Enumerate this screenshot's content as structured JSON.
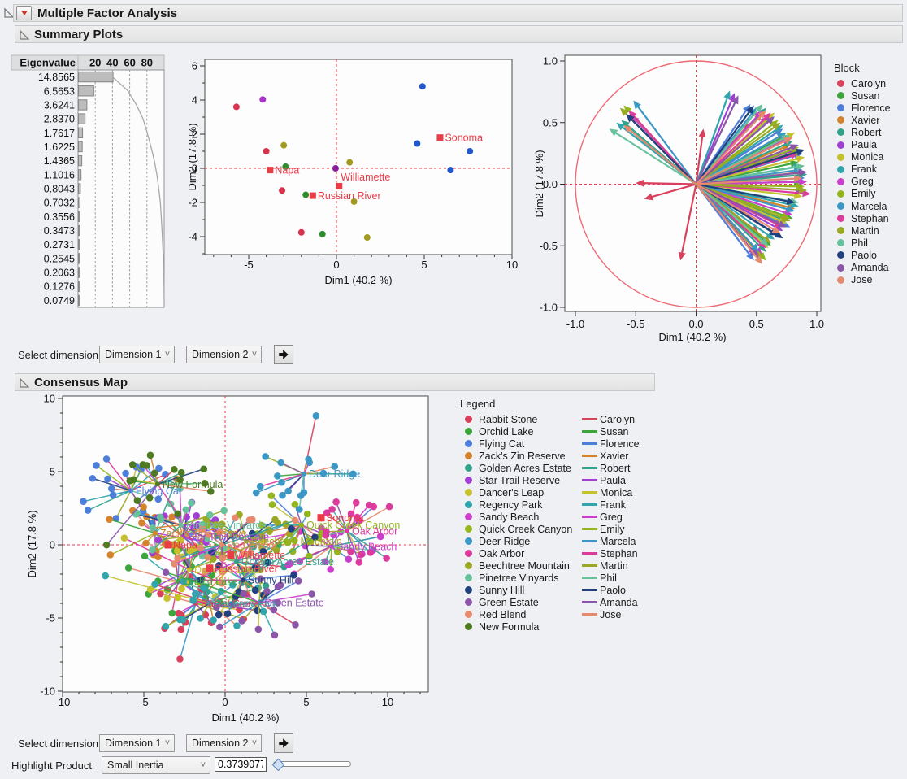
{
  "app": {
    "title": "Multiple Factor Analysis"
  },
  "sections": {
    "summary": "Summary Plots",
    "consensus": "Consensus Map"
  },
  "controls": {
    "select_dimension": "Select dimension",
    "dimension1": "Dimension 1",
    "dimension2": "Dimension 2",
    "highlight_product": "Highlight Product",
    "highlight_value": "Small Inertia",
    "inertia": "0.3739077"
  },
  "legends": {
    "block_title": "Block",
    "consensus_title": "Legend"
  },
  "blocks": [
    {
      "name": "Carolyn",
      "color": "#d8405c"
    },
    {
      "name": "Susan",
      "color": "#3ca53c"
    },
    {
      "name": "Florence",
      "color": "#4d7eda"
    },
    {
      "name": "Xavier",
      "color": "#d5822d"
    },
    {
      "name": "Robert",
      "color": "#32a38b"
    },
    {
      "name": "Paula",
      "color": "#a13fd4"
    },
    {
      "name": "Monica",
      "color": "#c5c22e"
    },
    {
      "name": "Frank",
      "color": "#30a5ab"
    },
    {
      "name": "Greg",
      "color": "#cc3fcc"
    },
    {
      "name": "Emily",
      "color": "#93b51d"
    },
    {
      "name": "Marcela",
      "color": "#3b97c4"
    },
    {
      "name": "Stephan",
      "color": "#dd3a9d"
    },
    {
      "name": "Martin",
      "color": "#9aa823"
    },
    {
      "name": "Phil",
      "color": "#67c29c"
    },
    {
      "name": "Paolo",
      "color": "#21417e"
    },
    {
      "name": "Amanda",
      "color": "#8b55a8"
    },
    {
      "name": "Jose",
      "color": "#e58a6f"
    }
  ],
  "chart_data": [
    {
      "id": "scree",
      "type": "bar",
      "col_header": "Eigenvalue",
      "axis_ticks": [
        20,
        40,
        60,
        80
      ],
      "values": [
        "14.8565",
        "6.5653",
        "3.6241",
        "2.8370",
        "1.7617",
        "1.6225",
        "1.4365",
        "1.1016",
        "0.8043",
        "0.7032",
        "0.3556",
        "0.3473",
        "0.2731",
        "0.2545",
        "0.2063",
        "0.1276",
        "0.0749"
      ],
      "percents": [
        40.2,
        17.8,
        9.8,
        7.7,
        4.8,
        4.4,
        3.9,
        3.0,
        2.2,
        1.9,
        1.0,
        0.9,
        0.7,
        0.7,
        0.6,
        0.3,
        0.2
      ],
      "cumulative": [
        40.2,
        58.0,
        67.8,
        75.5,
        80.3,
        84.7,
        88.6,
        91.6,
        93.7,
        95.6,
        96.6,
        97.5,
        98.3,
        99.0,
        99.5,
        99.8,
        100.0
      ]
    },
    {
      "id": "scores",
      "type": "scatter",
      "xlabel": "Dim1  (40.2 %)",
      "ylabel": "Dim2  (17.8 %)",
      "xlim": [
        -7.5,
        10
      ],
      "ylim": [
        -5.1,
        6.4
      ],
      "xticks": [
        -5,
        0,
        5,
        10
      ],
      "yticks": [
        -4,
        -2,
        0,
        2,
        4,
        6
      ],
      "accent": "#ea3b47",
      "points": [
        {
          "x": -5.7,
          "y": 3.6,
          "c": "#d8344e"
        },
        {
          "x": -4.0,
          "y": 1.0,
          "c": "#d8344e"
        },
        {
          "x": -3.1,
          "y": -1.3,
          "c": "#d8344e"
        },
        {
          "x": -2.0,
          "y": -3.75,
          "c": "#d8344e"
        },
        {
          "x": -4.2,
          "y": 4.03,
          "c": "#a832c8"
        },
        {
          "x": -0.05,
          "y": 0.0,
          "c": "#8c1f9e"
        },
        {
          "x": -3.0,
          "y": 1.35,
          "c": "#a29a1c"
        },
        {
          "x": 0.75,
          "y": 0.35,
          "c": "#a29a1c"
        },
        {
          "x": 1.0,
          "y": -1.95,
          "c": "#a29a1c"
        },
        {
          "x": 1.75,
          "y": -4.05,
          "c": "#a29a1c"
        },
        {
          "x": -2.9,
          "y": 0.1,
          "c": "#2f8f2f"
        },
        {
          "x": -1.75,
          "y": -1.55,
          "c": "#2f8f2f"
        },
        {
          "x": -0.8,
          "y": -3.85,
          "c": "#2f8f2f"
        },
        {
          "x": 4.9,
          "y": 4.8,
          "c": "#2458c8"
        },
        {
          "x": 4.6,
          "y": 1.45,
          "c": "#2458c8"
        },
        {
          "x": 7.6,
          "y": 1.0,
          "c": "#2458c8"
        },
        {
          "x": 6.5,
          "y": -0.1,
          "c": "#2458c8"
        }
      ],
      "supplementary": [
        {
          "label": "Sonoma",
          "x": 5.9,
          "y": 1.8,
          "pos": "right"
        },
        {
          "label": "Napa",
          "x": -3.78,
          "y": -0.1,
          "pos": "right"
        },
        {
          "label": "Williamette",
          "x": 0.15,
          "y": -1.05,
          "pos": "above"
        },
        {
          "label": "Russian River",
          "x": -1.35,
          "y": -1.6,
          "pos": "right"
        }
      ]
    },
    {
      "id": "loadings",
      "type": "vector",
      "xlabel": "Dim1  (40.2 %)",
      "ylabel": "Dim2  (17.8 %)",
      "ticks": [
        -1.0,
        -0.5,
        0.0,
        0.5,
        1.0
      ],
      "tick_labels": [
        "-1.0",
        "-0.5",
        "0.0",
        "0.5",
        "1.0"
      ],
      "accent": "#ea3b47",
      "circle_color": "#ed6a74",
      "arrows": {
        "Carolyn": [
          [
            0.06,
            0.45
          ],
          [
            -0.5,
            0.01
          ],
          [
            -0.43,
            -0.12
          ],
          [
            -0.13,
            -0.62
          ],
          [
            0.45,
            0.5
          ],
          [
            0.52,
            -0.4
          ]
        ],
        "Susan": [
          [
            0.62,
            0.55
          ],
          [
            0.75,
            0.4
          ],
          [
            0.85,
            0.18
          ],
          [
            0.88,
            0.02
          ],
          [
            0.8,
            -0.28
          ],
          [
            0.62,
            -0.5
          ]
        ],
        "Florence": [
          [
            0.45,
            0.65
          ],
          [
            0.72,
            0.45
          ],
          [
            0.88,
            0.25
          ],
          [
            0.9,
            0.05
          ],
          [
            0.78,
            -0.35
          ],
          [
            0.48,
            -0.62
          ]
        ],
        "Xavier": [
          [
            0.55,
            0.58
          ],
          [
            0.78,
            0.32
          ],
          [
            0.9,
            0.1
          ],
          [
            0.82,
            -0.2
          ],
          [
            0.68,
            -0.42
          ],
          [
            0.55,
            -0.6
          ]
        ],
        "Robert": [
          [
            -0.62,
            0.52
          ],
          [
            0.58,
            0.62
          ],
          [
            0.8,
            0.35
          ],
          [
            0.92,
            0.08
          ],
          [
            0.75,
            -0.3
          ],
          [
            0.58,
            -0.55
          ]
        ],
        "Paula": [
          [
            0.32,
            0.74
          ],
          [
            0.6,
            0.55
          ],
          [
            0.82,
            0.28
          ],
          [
            0.9,
            -0.05
          ],
          [
            0.72,
            -0.38
          ],
          [
            0.5,
            -0.58
          ]
        ],
        "Monica": [
          [
            0.65,
            0.58
          ],
          [
            0.82,
            0.42
          ],
          [
            0.9,
            0.22
          ],
          [
            0.88,
            -0.1
          ],
          [
            0.75,
            -0.32
          ],
          [
            0.6,
            -0.52
          ]
        ],
        "Frank": [
          [
            0.28,
            0.76
          ],
          [
            -0.66,
            0.5
          ],
          [
            0.72,
            0.48
          ],
          [
            0.88,
            0.15
          ],
          [
            0.85,
            -0.18
          ],
          [
            0.65,
            -0.45
          ]
        ],
        "Greg": [
          [
            -0.54,
            0.56
          ],
          [
            0.55,
            0.6
          ],
          [
            0.78,
            0.38
          ],
          [
            0.92,
            0.02
          ],
          [
            0.8,
            -0.25
          ],
          [
            0.55,
            -0.58
          ]
        ],
        "Emily": [
          [
            -0.6,
            0.64
          ],
          [
            0.68,
            0.52
          ],
          [
            0.85,
            0.3
          ],
          [
            0.9,
            -0.02
          ],
          [
            0.78,
            -0.28
          ],
          [
            0.58,
            -0.62
          ]
        ],
        "Marcela": [
          [
            -0.52,
            0.68
          ],
          [
            0.5,
            0.62
          ],
          [
            0.75,
            0.42
          ],
          [
            0.88,
            0.12
          ],
          [
            0.82,
            -0.22
          ],
          [
            0.52,
            -0.55
          ]
        ],
        "Stephan": [
          [
            -0.56,
            0.6
          ],
          [
            0.62,
            0.58
          ],
          [
            0.85,
            0.25
          ],
          [
            0.95,
            -0.08
          ],
          [
            0.72,
            -0.35
          ],
          [
            0.58,
            -0.52
          ]
        ],
        "Martin": [
          [
            -0.63,
            0.62
          ],
          [
            0.7,
            0.5
          ],
          [
            0.88,
            0.28
          ],
          [
            0.92,
            -0.05
          ],
          [
            0.78,
            -0.3
          ],
          [
            0.62,
            -0.48
          ]
        ],
        "Phil": [
          [
            -0.72,
            0.45
          ],
          [
            0.55,
            0.65
          ],
          [
            0.78,
            0.4
          ],
          [
            0.9,
            0.15
          ],
          [
            0.85,
            -0.15
          ],
          [
            0.6,
            -0.5
          ]
        ],
        "Paolo": [
          [
            -0.58,
            0.57
          ],
          [
            0.48,
            0.64
          ],
          [
            0.9,
            0.28
          ],
          [
            0.82,
            -0.15
          ],
          [
            0.68,
            -0.42
          ],
          [
            0.72,
            -0.44
          ]
        ],
        "Amanda": [
          [
            0.35,
            0.72
          ],
          [
            0.65,
            0.55
          ],
          [
            0.85,
            0.32
          ],
          [
            0.92,
            0.1
          ],
          [
            0.75,
            -0.35
          ],
          [
            0.52,
            -0.6
          ]
        ],
        "Jose": [
          [
            -0.6,
            0.48
          ],
          [
            0.58,
            0.6
          ],
          [
            0.8,
            0.38
          ],
          [
            0.88,
            0.05
          ],
          [
            0.7,
            -0.4
          ],
          [
            0.55,
            -0.65
          ]
        ]
      }
    },
    {
      "id": "consensus",
      "type": "scatter-network",
      "xlabel": "Dim1  (40.2 %)",
      "ylabel": "Dim2  (17.8 %)",
      "xlim": [
        -10,
        12.5
      ],
      "ylim": [
        -10.1,
        10.2
      ],
      "xticks": [
        -10,
        -5,
        0,
        5,
        10
      ],
      "yticks": [
        -10,
        -5,
        0,
        5,
        10
      ],
      "accent": "#ea3b47",
      "products": [
        {
          "name": "Rabbit Stone",
          "color": "#d8405c",
          "x": -1.8,
          "y": -4.0
        },
        {
          "name": "Orchid Lake",
          "color": "#3ca53c",
          "x": -2.9,
          "y": -2.5
        },
        {
          "name": "Flying Cat",
          "color": "#4d7eda",
          "x": -5.8,
          "y": 3.7
        },
        {
          "name": "Zack's Zin Reserve",
          "color": "#d5822d",
          "x": -4.3,
          "y": 0.8
        },
        {
          "name": "Golden Acres Estate",
          "color": "#32a38b",
          "x": 0.7,
          "y": -1.15
        },
        {
          "name": "Star Trail Reserve",
          "color": "#a13fd4",
          "x": -2.6,
          "y": 0.55
        },
        {
          "name": "Dancer's Leap",
          "color": "#c5c22e",
          "x": -2.2,
          "y": -1.7
        },
        {
          "name": "Regency Park",
          "color": "#30a5ab",
          "x": -0.95,
          "y": -4.0
        },
        {
          "name": "Sandy Beach",
          "color": "#cc3fcc",
          "x": 6.55,
          "y": -0.1
        },
        {
          "name": "Quick Creek Canyon",
          "color": "#93b51d",
          "x": 4.7,
          "y": 1.35
        },
        {
          "name": "Deer Ridge",
          "color": "#3b97c4",
          "x": 4.85,
          "y": 4.85
        },
        {
          "name": "Oak Arbor",
          "color": "#dd3a9d",
          "x": 7.5,
          "y": 0.95
        },
        {
          "name": "Beechtree Mountain",
          "color": "#9aa823",
          "x": 1.3,
          "y": 0.25
        },
        {
          "name": "Pinetree Vinyards",
          "color": "#67c29c",
          "x": -2.7,
          "y": 1.35
        },
        {
          "name": "Sunny Hill",
          "color": "#21417e",
          "x": 1.1,
          "y": -2.4
        },
        {
          "name": "Green Estate",
          "color": "#8b55a8",
          "x": 2.1,
          "y": -3.95
        },
        {
          "name": "Red Blend",
          "color": "#e58a6f",
          "x": -0.2,
          "y": 0.0
        },
        {
          "name": "New Formula",
          "color": "#4e7b21",
          "x": -4.15,
          "y": 4.15
        }
      ],
      "supplementary": [
        {
          "label": "Napa",
          "x": -3.5,
          "y": 0.0
        },
        {
          "label": "Sonoma",
          "x": 5.9,
          "y": 1.85
        },
        {
          "label": "Williamette",
          "x": 0.35,
          "y": -0.7
        },
        {
          "label": "Russian River",
          "x": -0.95,
          "y": -1.6
        }
      ],
      "spokes": {
        "seed": 40,
        "seed_step": 173,
        "base_radius": 0.75,
        "radius_span": 1.8,
        "outlier_chance": 0.1,
        "outlier_mult": 2.1,
        "x_stretch": 1.35
      }
    }
  ]
}
